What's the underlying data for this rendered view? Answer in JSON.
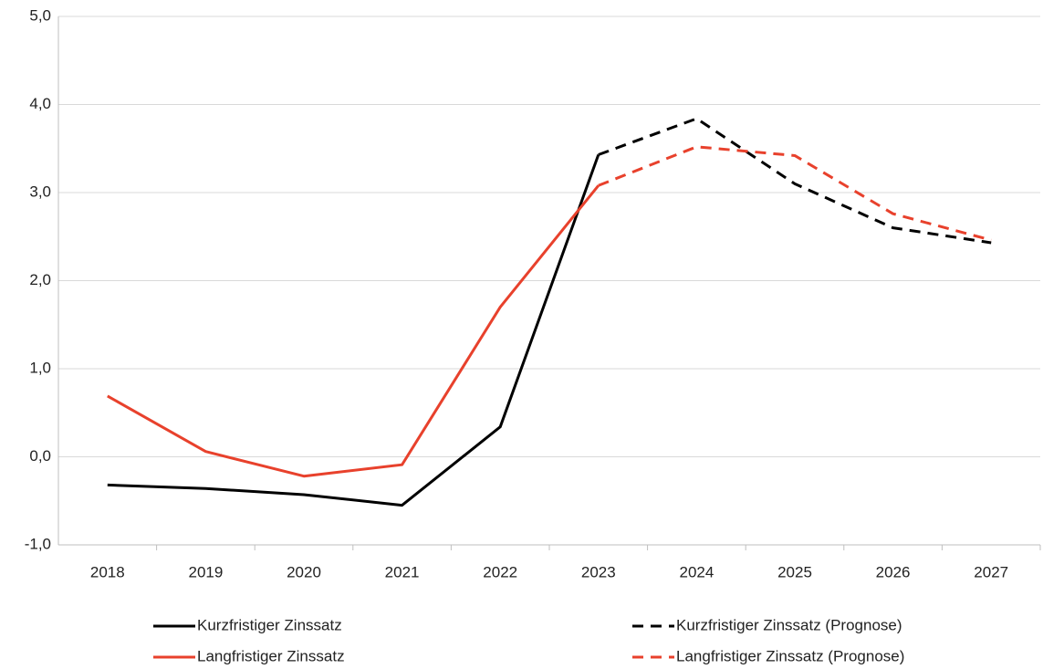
{
  "chart_data": {
    "type": "line",
    "categories": [
      "2018",
      "2019",
      "2020",
      "2021",
      "2022",
      "2023",
      "2024",
      "2025",
      "2026",
      "2027"
    ],
    "series": [
      {
        "name": "Kurzfristiger Zinssatz",
        "color": "#000000",
        "line_style": "solid",
        "values": [
          -0.32,
          -0.36,
          -0.43,
          -0.55,
          0.34,
          3.43,
          null,
          null,
          null,
          null
        ]
      },
      {
        "name": "Kurzfristiger Zinssatz (Prognose)",
        "color": "#000000",
        "line_style": "dashed",
        "values": [
          null,
          null,
          null,
          null,
          null,
          3.43,
          3.84,
          3.1,
          2.6,
          2.43
        ]
      },
      {
        "name": "Langfristiger Zinssatz",
        "color": "#e8412c",
        "line_style": "solid",
        "values": [
          0.69,
          0.06,
          -0.22,
          -0.09,
          1.7,
          3.08,
          null,
          null,
          null,
          null
        ]
      },
      {
        "name": "Langfristiger Zinssatz (Prognose)",
        "color": "#e8412c",
        "line_style": "dashed",
        "values": [
          null,
          null,
          null,
          null,
          null,
          3.08,
          3.52,
          3.42,
          2.76,
          2.46
        ]
      }
    ],
    "ylim": [
      -1,
      5
    ],
    "yticks": [
      {
        "value": -1,
        "label": "-1,0"
      },
      {
        "value": 0,
        "label": "0,0"
      },
      {
        "value": 1,
        "label": "1,0"
      },
      {
        "value": 2,
        "label": "2,0"
      },
      {
        "value": 3,
        "label": "3,0"
      },
      {
        "value": 4,
        "label": "4,0"
      },
      {
        "value": 5,
        "label": "5,0"
      }
    ],
    "grid": true
  }
}
